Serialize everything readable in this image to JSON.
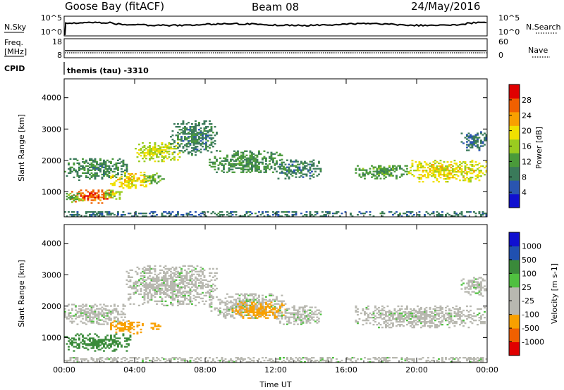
{
  "header": {
    "station": "Goose Bay (fitACF)",
    "beam": "Beam 08",
    "date": "24/May/2016"
  },
  "nsky_panel": {
    "left_label": "N.Sky",
    "left_ticks": [
      "10^5",
      "10^0"
    ],
    "right_ticks": [
      "10^5",
      "10^0"
    ],
    "right_label": "N.Search"
  },
  "freq_panel": {
    "left_label_1": "Freq.",
    "left_label_2": "[MHz]",
    "left_ticks": [
      "18",
      "8"
    ],
    "right_ticks": [
      "60",
      "0"
    ],
    "right_label": "Nave"
  },
  "cpid": {
    "label": "CPID",
    "value": "themis (tau) -3310"
  },
  "colors": {
    "power": [
      "#1010d0",
      "#2a55b0",
      "#3a7a5a",
      "#4a9a3a",
      "#9acc20",
      "#f0e000",
      "#f8a000",
      "#f06000",
      "#e00000"
    ],
    "velocity": [
      "#e00000",
      "#f06000",
      "#f8a000",
      "#b8b8b0",
      "#b8b8b0",
      "#50c040",
      "#3a8a3a",
      "#2050b0",
      "#1010d0"
    ]
  },
  "chart_data": [
    {
      "type": "heatmap",
      "name": "power",
      "ylabel": "Slant Range [km]",
      "yticks": [
        1000,
        2000,
        3000,
        4000
      ],
      "ylim": [
        200,
        4600
      ],
      "xlim": [
        0,
        24
      ],
      "colorbar": {
        "label": "Power [dB]",
        "ticks": [
          4,
          8,
          12,
          16,
          20,
          24,
          28
        ],
        "range": [
          0,
          32
        ]
      },
      "regions": [
        {
          "t0": 0.0,
          "t1": 3.6,
          "r0": 1350,
          "r1": 2050,
          "v": 10
        },
        {
          "t0": 0.4,
          "t1": 2.8,
          "r0": 620,
          "r1": 1050,
          "v": 27
        },
        {
          "t0": 0.0,
          "t1": 1.0,
          "r0": 650,
          "r1": 950,
          "v": 14
        },
        {
          "t0": 2.2,
          "t1": 3.3,
          "r0": 750,
          "r1": 1050,
          "v": 16
        },
        {
          "t0": 2.6,
          "t1": 4.8,
          "r0": 1100,
          "r1": 1600,
          "v": 20
        },
        {
          "t0": 4.5,
          "t1": 5.6,
          "r0": 1250,
          "r1": 1600,
          "v": 14
        },
        {
          "t0": 4.0,
          "t1": 6.5,
          "r0": 1950,
          "r1": 2550,
          "v": 17
        },
        {
          "t0": 6.0,
          "t1": 8.6,
          "r0": 2150,
          "r1": 3250,
          "v": 9
        },
        {
          "t0": 8.2,
          "t1": 12.5,
          "r0": 1600,
          "r1": 2300,
          "v": 11
        },
        {
          "t0": 12.0,
          "t1": 14.5,
          "r0": 1400,
          "r1": 2000,
          "v": 9
        },
        {
          "t0": 16.5,
          "t1": 19.5,
          "r0": 1400,
          "r1": 1850,
          "v": 12
        },
        {
          "t0": 19.5,
          "t1": 24.0,
          "r0": 1300,
          "r1": 2000,
          "v": 19
        },
        {
          "t0": 22.5,
          "t1": 24.0,
          "r0": 2300,
          "r1": 2900,
          "v": 8
        },
        {
          "t0": 0.0,
          "t1": 24.0,
          "r0": 200,
          "r1": 380,
          "v": 8
        }
      ]
    },
    {
      "type": "heatmap",
      "name": "velocity",
      "xlabel": "Time UT",
      "ylabel": "Slant Range [km]",
      "xticks": [
        "00:00",
        "04:00",
        "08:00",
        "12:00",
        "16:00",
        "20:00",
        "00:00"
      ],
      "yticks": [
        1000,
        2000,
        3000,
        4000
      ],
      "ylim": [
        200,
        4600
      ],
      "xlim": [
        0,
        24
      ],
      "colorbar": {
        "label": "Velocity [m s-1]",
        "ticks": [
          -1000,
          -500,
          -100,
          -25,
          25,
          100,
          500,
          1000
        ]
      },
      "regions": [
        {
          "t0": 0.0,
          "t1": 3.8,
          "r0": 550,
          "r1": 1100,
          "v": 150
        },
        {
          "t0": 0.0,
          "t1": 3.6,
          "r0": 1400,
          "r1": 2050,
          "v": 0
        },
        {
          "t0": 2.6,
          "t1": 4.4,
          "r0": 1100,
          "r1": 1550,
          "v": -300
        },
        {
          "t0": 4.8,
          "t1": 5.4,
          "r0": 1200,
          "r1": 1500,
          "v": -300
        },
        {
          "t0": 3.5,
          "t1": 8.6,
          "r0": 2000,
          "r1": 3300,
          "v": 0
        },
        {
          "t0": 8.2,
          "t1": 12.5,
          "r0": 1600,
          "r1": 2400,
          "v": 0
        },
        {
          "t0": 9.5,
          "t1": 12.5,
          "r0": 1600,
          "r1": 2100,
          "v": -300
        },
        {
          "t0": 12.0,
          "t1": 14.5,
          "r0": 1400,
          "r1": 2000,
          "v": 0
        },
        {
          "t0": 16.5,
          "t1": 24.0,
          "r0": 1300,
          "r1": 2000,
          "v": 0
        },
        {
          "t0": 22.5,
          "t1": 24.0,
          "r0": 2300,
          "r1": 2900,
          "v": 0
        },
        {
          "t0": 0.0,
          "t1": 24.0,
          "r0": 200,
          "r1": 380,
          "v": 0
        }
      ]
    }
  ]
}
